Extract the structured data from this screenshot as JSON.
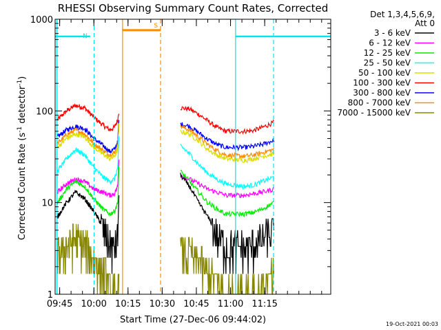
{
  "chart_data": {
    "type": "line",
    "title": "RHESSI Observing Summary Count Rates, Corrected",
    "xlabel": "Start Time (27-Dec-06 09:44:02)",
    "ylabel_main": "Corrected Count Rate (s",
    "ylabel_sup1": "-1",
    "ylabel_mid": " detector",
    "ylabel_sup2": "-1",
    "ylabel_end": ")",
    "footer_timestamp": "19-Oct-2021 00:03",
    "x_range_min": [
      -1,
      120
    ],
    "yscale": "log",
    "ylim": [
      1,
      1000
    ],
    "y_ticks": [
      {
        "value": 1,
        "label": "1"
      },
      {
        "value": 10,
        "label": "10"
      },
      {
        "value": 100,
        "label": "100"
      },
      {
        "value": 1000,
        "label": "1000"
      }
    ],
    "x_ticks": [
      {
        "min": 1,
        "label": "09:45"
      },
      {
        "min": 16,
        "label": "10:00"
      },
      {
        "min": 31,
        "label": "10:15"
      },
      {
        "min": 46,
        "label": "10:30"
      },
      {
        "min": 61,
        "label": "10:45"
      },
      {
        "min": 76,
        "label": "11:00"
      },
      {
        "min": 91,
        "label": "11:15"
      }
    ],
    "legend": {
      "header_1": "Det 1,3,4,5,6,9,",
      "header_2": "Att 0",
      "entries": [
        {
          "label": "3 - 6 keV",
          "color": "#000000"
        },
        {
          "label": "6 - 12 keV",
          "color": "#ff00ff"
        },
        {
          "label": "12 - 25 keV",
          "color": "#00ee00"
        },
        {
          "label": "25 - 50 keV",
          "color": "#00ffff"
        },
        {
          "label": "50 - 100 keV",
          "color": "#dddd00"
        },
        {
          "label": "100 - 300 keV",
          "color": "#ff0000"
        },
        {
          "label": "300 - 800 keV",
          "color": "#0000ff"
        },
        {
          "label": "800 - 7000 keV",
          "color": "#ff8c00"
        },
        {
          "label": "7000 - 15000 keV",
          "color": "#888800"
        }
      ]
    },
    "flags": [
      {
        "label": "N",
        "color": "#00e5ee",
        "level": 650,
        "segments": [
          [
            -1,
            14.4
          ],
          [
            78.2,
            120
          ]
        ]
      },
      {
        "label": "S",
        "color": "#ff8c00",
        "level": 760,
        "segments": [
          [
            28.6,
            45.3
          ]
        ]
      }
    ],
    "vlines": [
      {
        "min": -0.2,
        "color": "#00e5ee",
        "style": "solid"
      },
      {
        "min": 16.1,
        "color": "#00e5ee",
        "style": "dashed"
      },
      {
        "min": 28.6,
        "color": "#ff8c00",
        "style": "solid"
      },
      {
        "min": 45.3,
        "color": "#ff8c00",
        "style": "dashed"
      },
      {
        "min": 78.2,
        "color": "#00e5ee",
        "style": "solid"
      },
      {
        "min": 94.9,
        "color": "#00e5ee",
        "style": "dashed"
      }
    ],
    "segments": [
      [
        0,
        27
      ],
      [
        54,
        95
      ]
    ],
    "series": [
      {
        "color": "#ff0000",
        "seg1": [
          [
            0,
            80
          ],
          [
            4,
            100
          ],
          [
            8,
            115
          ],
          [
            12,
            108
          ],
          [
            16,
            85
          ],
          [
            20,
            70
          ],
          [
            23,
            62
          ],
          [
            25,
            66
          ],
          [
            26.5,
            80
          ],
          [
            27,
            98
          ]
        ],
        "seg2": [
          [
            54,
            108
          ],
          [
            58,
            105
          ],
          [
            62,
            92
          ],
          [
            66,
            78
          ],
          [
            70,
            66
          ],
          [
            74,
            60
          ],
          [
            82,
            60
          ],
          [
            86,
            61
          ],
          [
            90,
            66
          ],
          [
            95,
            75
          ]
        ]
      },
      {
        "color": "#0000ff",
        "seg1": [
          [
            0,
            52
          ],
          [
            4,
            62
          ],
          [
            8,
            68
          ],
          [
            12,
            64
          ],
          [
            16,
            50
          ],
          [
            20,
            42
          ],
          [
            23,
            36
          ],
          [
            25,
            38
          ],
          [
            26.5,
            46
          ],
          [
            27,
            80
          ]
        ],
        "seg2": [
          [
            54,
            72
          ],
          [
            58,
            68
          ],
          [
            62,
            58
          ],
          [
            66,
            49
          ],
          [
            70,
            43
          ],
          [
            74,
            40
          ],
          [
            82,
            40
          ],
          [
            86,
            41
          ],
          [
            90,
            43
          ],
          [
            95,
            48
          ]
        ]
      },
      {
        "color": "#ff8c00",
        "seg1": [
          [
            0,
            44
          ],
          [
            4,
            55
          ],
          [
            8,
            62
          ],
          [
            12,
            56
          ],
          [
            16,
            44
          ],
          [
            20,
            37
          ],
          [
            23,
            33
          ],
          [
            25,
            35
          ],
          [
            26.5,
            42
          ],
          [
            27,
            75
          ]
        ],
        "seg2": [
          [
            54,
            68
          ],
          [
            58,
            62
          ],
          [
            62,
            52
          ],
          [
            66,
            43
          ],
          [
            70,
            37
          ],
          [
            74,
            33
          ],
          [
            82,
            32
          ],
          [
            86,
            33
          ],
          [
            90,
            35
          ],
          [
            95,
            38
          ]
        ]
      },
      {
        "color": "#dddd00",
        "seg1": [
          [
            0,
            40
          ],
          [
            4,
            50
          ],
          [
            8,
            56
          ],
          [
            12,
            52
          ],
          [
            16,
            40
          ],
          [
            20,
            34
          ],
          [
            23,
            30
          ],
          [
            25,
            32
          ],
          [
            26.5,
            38
          ],
          [
            27,
            70
          ]
        ],
        "seg2": [
          [
            54,
            60
          ],
          [
            58,
            56
          ],
          [
            62,
            47
          ],
          [
            66,
            38
          ],
          [
            70,
            33
          ],
          [
            74,
            30
          ],
          [
            82,
            29
          ],
          [
            86,
            30
          ],
          [
            90,
            32
          ],
          [
            95,
            34
          ]
        ]
      },
      {
        "color": "#00ffff",
        "seg1": [
          [
            0,
            22
          ],
          [
            4,
            30
          ],
          [
            8,
            38
          ],
          [
            12,
            33
          ],
          [
            16,
            24
          ],
          [
            20,
            19
          ],
          [
            23,
            17
          ],
          [
            25,
            18
          ],
          [
            26.5,
            24
          ],
          [
            27,
            50
          ]
        ],
        "seg2": [
          [
            54,
            42
          ],
          [
            58,
            34
          ],
          [
            62,
            26
          ],
          [
            66,
            21
          ],
          [
            70,
            18
          ],
          [
            74,
            16
          ],
          [
            82,
            15
          ],
          [
            86,
            15.5
          ],
          [
            90,
            17
          ],
          [
            95,
            19
          ]
        ]
      },
      {
        "color": "#ff00ff",
        "seg1": [
          [
            0,
            13
          ],
          [
            4,
            16
          ],
          [
            8,
            18
          ],
          [
            12,
            17
          ],
          [
            16,
            14
          ],
          [
            20,
            13
          ],
          [
            23,
            12
          ],
          [
            25,
            12.5
          ],
          [
            26.5,
            15
          ],
          [
            27,
            30
          ]
        ],
        "seg2": [
          [
            54,
            20
          ],
          [
            58,
            18
          ],
          [
            62,
            16
          ],
          [
            66,
            14
          ],
          [
            70,
            13
          ],
          [
            74,
            12
          ],
          [
            82,
            12
          ],
          [
            86,
            12.5
          ],
          [
            90,
            13
          ],
          [
            95,
            14
          ]
        ]
      },
      {
        "color": "#00ee00",
        "seg1": [
          [
            0,
            10
          ],
          [
            4,
            14
          ],
          [
            8,
            17
          ],
          [
            12,
            15
          ],
          [
            16,
            11
          ],
          [
            20,
            8.5
          ],
          [
            23,
            7.5
          ],
          [
            25,
            8
          ],
          [
            26.5,
            10
          ],
          [
            27,
            25
          ]
        ],
        "seg2": [
          [
            54,
            22
          ],
          [
            58,
            17
          ],
          [
            62,
            13
          ],
          [
            66,
            10
          ],
          [
            70,
            8.5
          ],
          [
            74,
            7.5
          ],
          [
            82,
            7.5
          ],
          [
            86,
            7.8
          ],
          [
            90,
            8.5
          ],
          [
            95,
            10
          ]
        ]
      },
      {
        "color": "#000000",
        "seg1": [
          [
            0,
            7
          ],
          [
            4,
            10
          ],
          [
            8,
            13
          ],
          [
            12,
            11
          ],
          [
            16,
            8
          ],
          [
            20,
            5.5
          ],
          [
            23,
            4
          ],
          [
            25,
            3.6
          ],
          [
            26.5,
            4.5
          ],
          [
            27,
            12
          ]
        ],
        "seg2": [
          [
            54,
            20
          ],
          [
            58,
            15
          ],
          [
            62,
            10
          ],
          [
            66,
            7
          ],
          [
            70,
            4.8
          ],
          [
            74,
            3.8
          ],
          [
            82,
            3.6
          ],
          [
            86,
            3.8
          ],
          [
            90,
            4.4
          ],
          [
            95,
            5.5
          ]
        ]
      },
      {
        "color": "#888800",
        "seg1": [
          [
            0,
            3
          ],
          [
            4,
            3.8
          ],
          [
            8,
            4.5
          ],
          [
            12,
            3.8
          ],
          [
            16,
            2.8
          ],
          [
            20,
            2.1
          ],
          [
            23,
            1.5
          ],
          [
            25,
            1.2
          ],
          [
            26.5,
            1.3
          ],
          [
            27,
            3
          ]
        ],
        "seg2": [
          [
            54,
            3.5
          ],
          [
            58,
            3.2
          ],
          [
            62,
            2.7
          ],
          [
            66,
            2.1
          ],
          [
            70,
            1.6
          ],
          [
            74,
            1.3
          ],
          [
            82,
            1.4
          ],
          [
            86,
            1.5
          ],
          [
            90,
            1.6
          ],
          [
            95,
            1.8
          ]
        ]
      }
    ]
  }
}
